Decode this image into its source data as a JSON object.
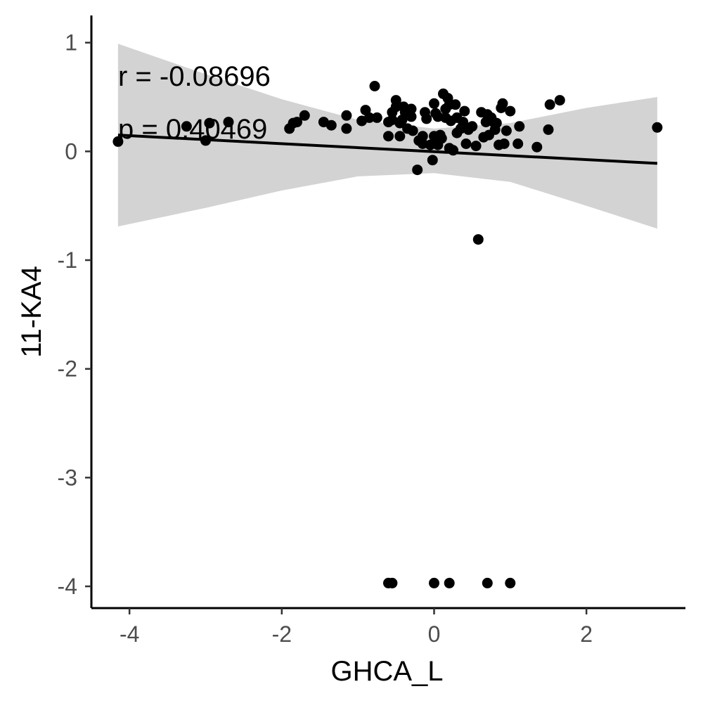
{
  "chart_data": {
    "type": "scatter",
    "xlabel": "GHCA_L",
    "ylabel": "11-KA4",
    "xlim": [
      -4.5,
      3.3
    ],
    "ylim": [
      -4.2,
      1.25
    ],
    "x_ticks": [
      -4,
      -2,
      0,
      2
    ],
    "y_ticks": [
      1,
      0,
      -1,
      -2,
      -3,
      -4
    ],
    "x_tick_labels": [
      "-4",
      "-2",
      "0",
      "2"
    ],
    "y_tick_labels": [
      "1",
      "0",
      "-1",
      "-2",
      "-3",
      "-4"
    ],
    "grid": false,
    "legend": "none",
    "annotations": [
      "r = -0.08696",
      "p = 0.40469"
    ],
    "colors": {
      "points": "#000000",
      "fit_line": "#000000",
      "confidence_band": "#d3d3d3"
    },
    "fit_line": {
      "x": [
        -4.15,
        2.93
      ],
      "y": [
        0.15,
        -0.11
      ]
    },
    "confidence_band": {
      "x": [
        -4.15,
        -3.0,
        -2.0,
        -1.0,
        0.0,
        1.0,
        2.0,
        2.93
      ],
      "upper": [
        0.99,
        0.71,
        0.48,
        0.29,
        0.21,
        0.26,
        0.4,
        0.5
      ],
      "lower": [
        -0.69,
        -0.52,
        -0.36,
        -0.23,
        -0.2,
        -0.28,
        -0.5,
        -0.71
      ]
    },
    "points": {
      "x": [
        -4.15,
        -3.25,
        -3.0,
        -2.95,
        -2.7,
        -1.9,
        -1.85,
        -1.8,
        -1.7,
        -1.45,
        -1.35,
        -1.15,
        -1.15,
        -0.95,
        -0.9,
        -0.85,
        -0.78,
        -0.75,
        -0.6,
        -0.6,
        -0.55,
        -0.55,
        -0.5,
        -0.5,
        -0.45,
        -0.45,
        -0.42,
        -0.4,
        -0.38,
        -0.35,
        -0.3,
        -0.3,
        -0.28,
        -0.22,
        -0.2,
        -0.15,
        -0.15,
        -0.12,
        -0.1,
        -0.05,
        -0.02,
        0.0,
        0.0,
        0.02,
        0.05,
        0.05,
        0.08,
        0.1,
        0.12,
        0.15,
        0.15,
        0.18,
        0.2,
        0.2,
        0.22,
        0.25,
        0.28,
        0.3,
        0.3,
        0.35,
        0.38,
        0.4,
        0.42,
        0.45,
        0.5,
        0.55,
        0.58,
        0.62,
        0.65,
        0.68,
        0.7,
        0.72,
        0.75,
        0.78,
        0.8,
        0.82,
        0.85,
        0.88,
        0.9,
        0.92,
        0.95,
        1.0,
        1.1,
        1.12,
        1.35,
        1.5,
        1.52,
        1.65,
        2.93,
        -0.6,
        -0.55,
        0.0,
        0.2,
        0.7,
        1.0
      ],
      "y": [
        0.09,
        0.23,
        0.1,
        0.26,
        0.27,
        0.21,
        0.26,
        0.27,
        0.33,
        0.27,
        0.24,
        0.33,
        0.21,
        0.28,
        0.38,
        0.31,
        0.6,
        0.31,
        0.27,
        0.14,
        0.29,
        0.36,
        0.47,
        0.41,
        0.14,
        0.26,
        0.29,
        0.41,
        0.36,
        0.21,
        0.32,
        0.39,
        0.19,
        -0.17,
        0.1,
        0.14,
        0.07,
        0.36,
        0.3,
        0.06,
        -0.08,
        0.14,
        0.44,
        0.35,
        0.06,
        0.32,
        0.15,
        0.12,
        0.53,
        0.39,
        0.31,
        0.49,
        0.43,
        0.03,
        0.28,
        0.01,
        0.43,
        0.31,
        0.17,
        0.21,
        0.27,
        0.37,
        0.07,
        0.2,
        0.23,
        0.05,
        -0.81,
        0.36,
        0.13,
        0.27,
        0.34,
        0.15,
        0.31,
        0.27,
        0.2,
        0.26,
        0.06,
        0.4,
        0.44,
        0.07,
        0.19,
        0.37,
        0.07,
        0.23,
        0.04,
        0.2,
        0.43,
        0.47,
        0.22,
        -3.97,
        -3.97,
        -3.97,
        -3.97,
        -3.97,
        -3.97
      ]
    }
  }
}
